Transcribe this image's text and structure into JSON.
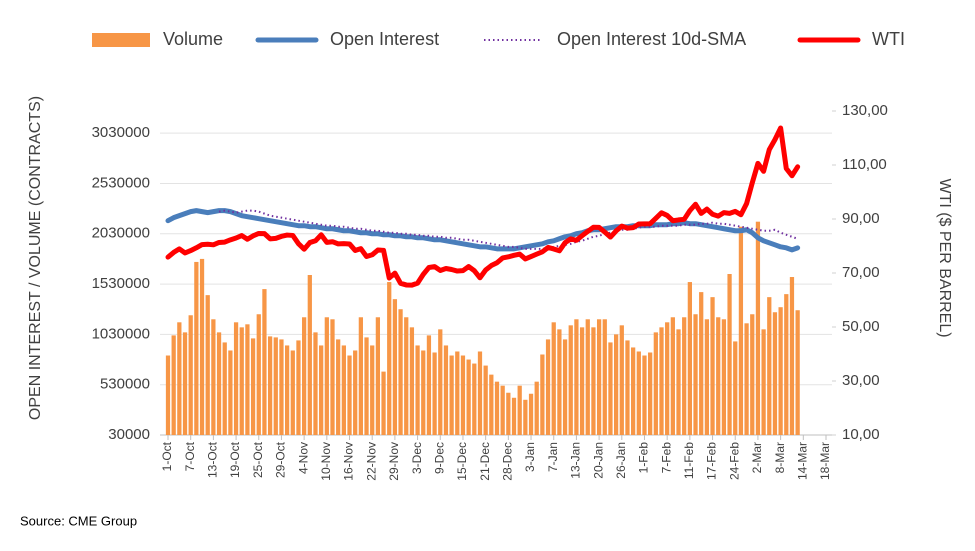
{
  "chart_data": {
    "type": "combo",
    "source": "Source: CME Group",
    "y_label": "OPEN INTEREST / VOLUME (CONTRACTS)",
    "y2_label": "WTI ($ PER BARREL)",
    "legend": "top",
    "grid": true,
    "categories": [
      "1-Oct",
      null,
      null,
      null,
      "7-Oct",
      null,
      null,
      null,
      "13-Oct",
      null,
      null,
      null,
      "19-Oct",
      null,
      null,
      null,
      "25-Oct",
      null,
      null,
      null,
      "29-Oct",
      null,
      null,
      null,
      "4-Nov",
      null,
      null,
      null,
      "10-Nov",
      null,
      null,
      null,
      "16-Nov",
      null,
      null,
      null,
      "22-Nov",
      null,
      null,
      null,
      "29-Nov",
      null,
      null,
      null,
      "3-Dec",
      null,
      null,
      null,
      "9-Dec",
      null,
      null,
      null,
      "15-Dec",
      null,
      null,
      null,
      "21-Dec",
      null,
      null,
      null,
      "28-Dec",
      null,
      null,
      null,
      "3-Jan",
      null,
      null,
      null,
      "7-Jan",
      null,
      null,
      null,
      "13-Jan",
      null,
      null,
      null,
      "20-Jan",
      null,
      null,
      null,
      "26-Jan",
      null,
      null,
      null,
      "1-Feb",
      null,
      null,
      null,
      "7-Feb",
      null,
      null,
      null,
      "11-Feb",
      null,
      null,
      null,
      "17-Feb",
      null,
      null,
      null,
      "24-Feb",
      null,
      null,
      null,
      "2-Mar",
      null,
      null,
      null,
      "8-Mar",
      null,
      null,
      null,
      "14-Mar",
      null,
      null,
      null,
      "18-Mar"
    ],
    "ylim": [
      30000,
      3250000
    ],
    "yticks": [
      30000,
      530000,
      1030000,
      1530000,
      2030000,
      2530000,
      3030000
    ],
    "y2lim": [
      10,
      130
    ],
    "y2ticks": [
      {
        "value": 10,
        "label": "10,00"
      },
      {
        "value": 30,
        "label": "30,00"
      },
      {
        "value": 50,
        "label": "50,00"
      },
      {
        "value": 70,
        "label": "70,00"
      },
      {
        "value": 90,
        "label": "90,00"
      },
      {
        "value": 110,
        "label": "110,00"
      },
      {
        "value": 130,
        "label": "130,00"
      }
    ],
    "series": [
      {
        "name": "Volume",
        "type": "bar",
        "color": "#f79646",
        "values": [
          820000,
          1020000,
          1150000,
          1050000,
          1220000,
          1750000,
          1780000,
          1420000,
          1180000,
          1050000,
          950000,
          870000,
          1150000,
          1100000,
          1130000,
          990000,
          1230000,
          1480000,
          1010000,
          1000000,
          980000,
          920000,
          870000,
          970000,
          1200000,
          1620000,
          1050000,
          920000,
          1200000,
          1180000,
          980000,
          920000,
          820000,
          870000,
          1200000,
          1000000,
          920000,
          1200000,
          660000,
          1550000,
          1380000,
          1280000,
          1200000,
          1100000,
          920000,
          870000,
          1020000,
          850000,
          1080000,
          920000,
          820000,
          860000,
          820000,
          780000,
          740000,
          860000,
          720000,
          630000,
          560000,
          520000,
          450000,
          400000,
          520000,
          380000,
          440000,
          560000,
          830000,
          980000,
          1150000,
          1080000,
          980000,
          1120000,
          1180000,
          1100000,
          1180000,
          1100000,
          1180000,
          1180000,
          950000,
          1030000,
          1120000,
          970000,
          900000,
          860000,
          820000,
          850000,
          1050000,
          1100000,
          1150000,
          1200000,
          1080000,
          1200000,
          1550000,
          1230000,
          1450000,
          1180000,
          1400000,
          1200000,
          1180000,
          1630000,
          960000,
          2100000,
          1140000,
          1230000,
          2150000,
          1080000,
          1400000,
          1250000,
          1300000,
          1430000,
          1600000,
          1270000,
          null,
          null,
          null,
          null,
          null
        ]
      },
      {
        "name": "Open Interest",
        "type": "line",
        "color": "#4a7ebb",
        "width": 5,
        "values": [
          2160000,
          2190000,
          2210000,
          2230000,
          2250000,
          2260000,
          2250000,
          2240000,
          2250000,
          2260000,
          2260000,
          2250000,
          2230000,
          2210000,
          2200000,
          2190000,
          2180000,
          2170000,
          2160000,
          2150000,
          2140000,
          2130000,
          2120000,
          2110000,
          2110000,
          2100000,
          2100000,
          2090000,
          2080000,
          2080000,
          2070000,
          2060000,
          2060000,
          2050000,
          2040000,
          2040000,
          2030000,
          2030000,
          2020000,
          2020000,
          2010000,
          2010000,
          2000000,
          2000000,
          1990000,
          1990000,
          1980000,
          1970000,
          1970000,
          1960000,
          1950000,
          1940000,
          1930000,
          1920000,
          1910000,
          1900000,
          1900000,
          1890000,
          1880000,
          1880000,
          1880000,
          1880000,
          1890000,
          1900000,
          1910000,
          1920000,
          1930000,
          1950000,
          1960000,
          1980000,
          2000000,
          2010000,
          2030000,
          2040000,
          2060000,
          2070000,
          2070000,
          2080000,
          2090000,
          2100000,
          2100000,
          2100000,
          2110000,
          2110000,
          2110000,
          2110000,
          2120000,
          2120000,
          2120000,
          2130000,
          2130000,
          2140000,
          2130000,
          2130000,
          2120000,
          2110000,
          2100000,
          2090000,
          2080000,
          2070000,
          2060000,
          2060000,
          2070000,
          2040000,
          1990000,
          1960000,
          1940000,
          1920000,
          1900000,
          1890000,
          1870000,
          1890000,
          null,
          null,
          null,
          null,
          null
        ]
      },
      {
        "name": "Open Interest 10d-SMA",
        "type": "line",
        "dash": "dotted",
        "color": "#7030a0",
        "width": 2,
        "values": [
          null,
          null,
          null,
          null,
          null,
          null,
          null,
          null,
          null,
          2250000,
          2260000,
          2250000,
          2240000,
          2250000,
          2260000,
          2260000,
          2250000,
          2230000,
          2210000,
          2200000,
          2190000,
          2180000,
          2170000,
          2160000,
          2150000,
          2140000,
          2130000,
          2120000,
          2110000,
          2110000,
          2100000,
          2100000,
          2090000,
          2080000,
          2080000,
          2070000,
          2060000,
          2060000,
          2050000,
          2040000,
          2040000,
          2030000,
          2030000,
          2020000,
          2020000,
          2010000,
          2010000,
          2000000,
          2000000,
          1990000,
          1990000,
          1980000,
          1970000,
          1970000,
          1960000,
          1950000,
          1940000,
          1930000,
          1920000,
          1910000,
          1900000,
          1900000,
          1890000,
          1880000,
          1880000,
          1880000,
          1880000,
          1890000,
          1900000,
          1910000,
          1920000,
          1930000,
          1950000,
          1960000,
          1980000,
          2000000,
          2010000,
          2030000,
          2040000,
          2060000,
          2070000,
          2070000,
          2080000,
          2090000,
          2100000,
          2100000,
          2100000,
          2110000,
          2110000,
          2110000,
          2110000,
          2120000,
          2120000,
          2120000,
          2130000,
          2130000,
          2140000,
          2130000,
          2130000,
          2120000,
          2110000,
          2100000,
          2090000,
          2080000,
          2070000,
          2060000,
          2060000,
          2070000,
          2040000,
          2020000,
          2000000,
          1980000,
          null,
          null,
          null,
          null,
          null
        ]
      },
      {
        "name": "WTI",
        "type": "line",
        "axis": "y2",
        "color": "#ff0000",
        "width": 5,
        "values": [
          75.88,
          77.62,
          78.93,
          77.43,
          78.3,
          79.35,
          80.52,
          80.64,
          80.44,
          81.31,
          81.44,
          82.28,
          82.96,
          83.87,
          82.5,
          83.76,
          84.65,
          84.58,
          82.66,
          82.81,
          83.57,
          84.05,
          83.91,
          80.86,
          78.81,
          81.27,
          81.93,
          84.15,
          81.34,
          81.59,
          80.79,
          80.88,
          80.76,
          78.36,
          79.01,
          76.1,
          76.75,
          78.5,
          78.39,
          68.15,
          69.95,
          66.18,
          65.57,
          65.5,
          66.26,
          69.49,
          72.05,
          72.36,
          70.94,
          71.67,
          71.29,
          70.73,
          70.87,
          72.38,
          70.86,
          68.23,
          71.12,
          72.76,
          73.79,
          75.57,
          75.98,
          76.56,
          76.99,
          75.21,
          76.08,
          76.99,
          77.85,
          79.46,
          78.9,
          78.23,
          81.22,
          82.64,
          82.12,
          83.82,
          85.43,
          86.96,
          86.9,
          85.14,
          83.31,
          85.6,
          87.35,
          86.61,
          86.82,
          88.15,
          88.2,
          88.26,
          90.27,
          92.31,
          91.32,
          89.36,
          89.66,
          89.88,
          93.1,
          95.46,
          92.07,
          93.66,
          91.76,
          91.07,
          92.35,
          92.1,
          92.81,
          91.59,
          95.72,
          103.41,
          110.6,
          107.67,
          115.68,
          119.4,
          123.7,
          108.7,
          106.02,
          109.33,
          null,
          null,
          null,
          null,
          null
        ]
      }
    ]
  }
}
